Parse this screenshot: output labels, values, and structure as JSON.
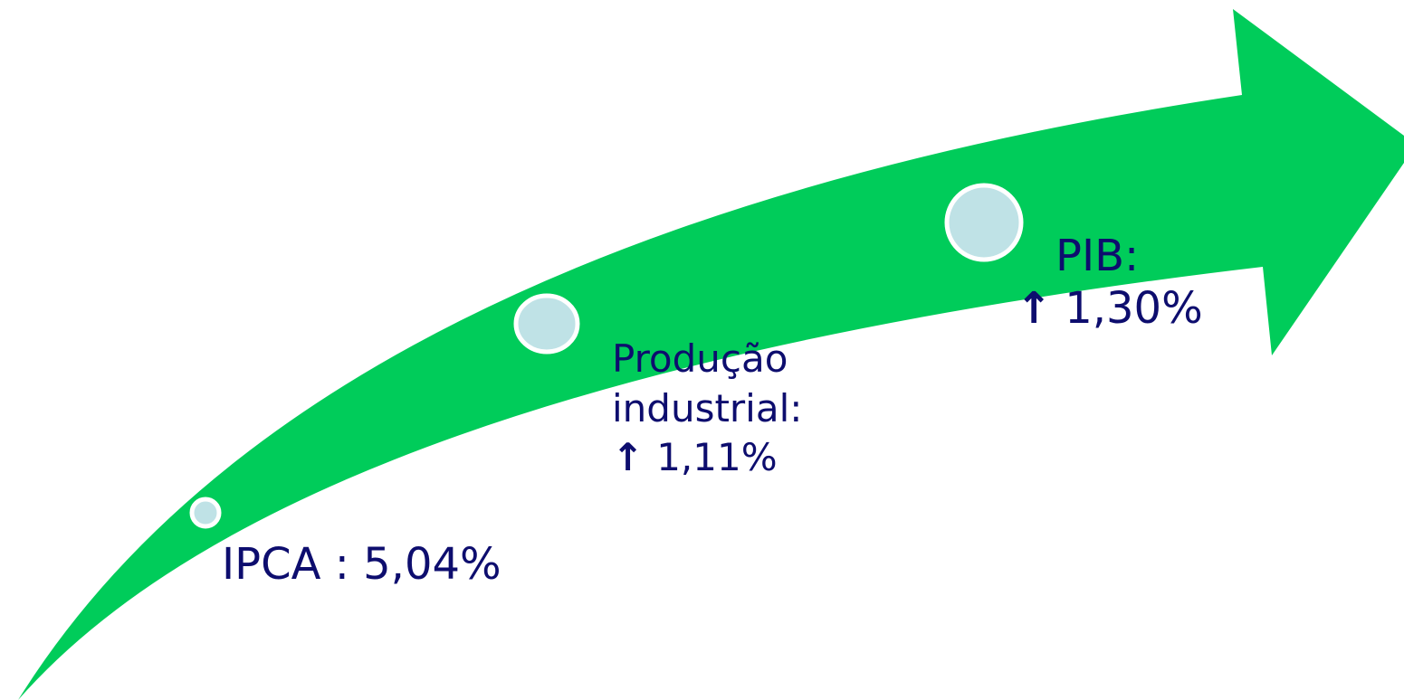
{
  "diagram": {
    "arrow_color": "#00cc5a",
    "node_fill": "#bfe2e6",
    "node_stroke": "#ffffff",
    "text_color": "#0d0d6e",
    "milestones": [
      {
        "label": "IPCA : 5,04%"
      },
      {
        "label_line1": "Produção",
        "label_line2": "industrial:",
        "arrow": "↑",
        "value": "1,11%"
      },
      {
        "label": "PIB:",
        "arrow": "↑",
        "value": "1,30%"
      }
    ]
  }
}
